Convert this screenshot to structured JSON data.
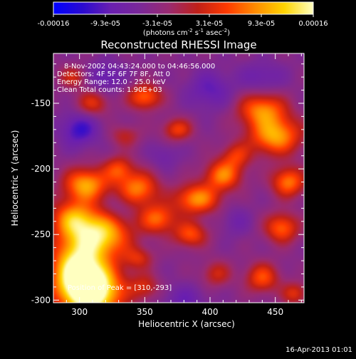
{
  "chart_data": {
    "type": "heatmap",
    "title": "Reconstructed RHESSI Image",
    "xlabel": "Heliocentric X (arcsec)",
    "ylabel": "Heliocentric Y (arcsec)",
    "xlim": [
      280,
      472
    ],
    "ylim": [
      -302,
      -112
    ],
    "xticks": [
      300,
      350,
      400,
      450
    ],
    "yticks": [
      -150,
      -200,
      -250,
      -300
    ],
    "colorbar": {
      "min": -0.00016,
      "max": 0.00016,
      "ticks": [
        "-0.00016",
        "-9.3e-05",
        "-3.1e-05",
        "3.1e-05",
        "9.3e-05",
        "0.00016"
      ],
      "unit_label": "(photons cm",
      "unit_sup1": "-2",
      "unit_mid": " s",
      "unit_sup2": "-1",
      "unit_end": " asec",
      "unit_sup3": "-2",
      "unit_close": ")"
    },
    "annotations": [
      "8-Nov-2002 04:43:24.000 to 04:46:56.000",
      "Detectors: 4F 5F 6F 7F 8F, Att 0",
      "Energy Range: 12.0 - 25.0 keV",
      "Clean     Total counts: 1.90E+03"
    ],
    "peak_label": "Position of Peak = [310,-293]",
    "peak": {
      "x": 310,
      "y": -293
    },
    "timestamp": "16-Apr-2013 01:01",
    "blobs": [
      {
        "x": 310,
        "y": -293,
        "amp": 1.0,
        "sx": 16,
        "sy": 14
      },
      {
        "x": 298,
        "y": -275,
        "amp": 0.8,
        "sx": 14,
        "sy": 18
      },
      {
        "x": 318,
        "y": -250,
        "amp": 0.7,
        "sx": 15,
        "sy": 12
      },
      {
        "x": 295,
        "y": -238,
        "amp": 0.55,
        "sx": 12,
        "sy": 10
      },
      {
        "x": 305,
        "y": -212,
        "amp": 0.65,
        "sx": 12,
        "sy": 9
      },
      {
        "x": 345,
        "y": -215,
        "amp": 0.55,
        "sx": 11,
        "sy": 9
      },
      {
        "x": 360,
        "y": -238,
        "amp": 0.5,
        "sx": 10,
        "sy": 8
      },
      {
        "x": 390,
        "y": -223,
        "amp": 0.6,
        "sx": 12,
        "sy": 8
      },
      {
        "x": 410,
        "y": -205,
        "amp": 0.55,
        "sx": 10,
        "sy": 8
      },
      {
        "x": 385,
        "y": -250,
        "amp": 0.45,
        "sx": 9,
        "sy": 7
      },
      {
        "x": 330,
        "y": -200,
        "amp": 0.4,
        "sx": 8,
        "sy": 7
      },
      {
        "x": 420,
        "y": -190,
        "amp": 0.35,
        "sx": 8,
        "sy": 7
      },
      {
        "x": 450,
        "y": -175,
        "amp": 0.65,
        "sx": 14,
        "sy": 10
      },
      {
        "x": 440,
        "y": -155,
        "amp": 0.55,
        "sx": 13,
        "sy": 9
      },
      {
        "x": 350,
        "y": -145,
        "amp": 0.5,
        "sx": 9,
        "sy": 7
      },
      {
        "x": 375,
        "y": -170,
        "amp": 0.4,
        "sx": 8,
        "sy": 6
      },
      {
        "x": 310,
        "y": -150,
        "amp": 0.35,
        "sx": 9,
        "sy": 7
      },
      {
        "x": 295,
        "y": -130,
        "amp": 0.3,
        "sx": 8,
        "sy": 6
      },
      {
        "x": 460,
        "y": -210,
        "amp": 0.55,
        "sx": 9,
        "sy": 8
      },
      {
        "x": 455,
        "y": -245,
        "amp": 0.5,
        "sx": 9,
        "sy": 8
      },
      {
        "x": 440,
        "y": -283,
        "amp": 0.45,
        "sx": 9,
        "sy": 8
      },
      {
        "x": 465,
        "y": -295,
        "amp": 0.35,
        "sx": 7,
        "sy": 6
      },
      {
        "x": 405,
        "y": -280,
        "amp": 0.3,
        "sx": 8,
        "sy": 7
      },
      {
        "x": 350,
        "y": -290,
        "amp": 0.3,
        "sx": 8,
        "sy": 7
      },
      {
        "x": 345,
        "y": -268,
        "amp": 0.3,
        "sx": 8,
        "sy": 6
      },
      {
        "x": 335,
        "y": -175,
        "amp": 0.25,
        "sx": 8,
        "sy": 6
      },
      {
        "x": 300,
        "y": -170,
        "amp": -0.35,
        "sx": 10,
        "sy": 9
      },
      {
        "x": 320,
        "y": -130,
        "amp": -0.25,
        "sx": 10,
        "sy": 8
      },
      {
        "x": 400,
        "y": -140,
        "amp": -0.25,
        "sx": 12,
        "sy": 10
      },
      {
        "x": 440,
        "y": -130,
        "amp": -0.2,
        "sx": 12,
        "sy": 8
      },
      {
        "x": 380,
        "y": -300,
        "amp": -0.2,
        "sx": 12,
        "sy": 8
      },
      {
        "x": 420,
        "y": -240,
        "amp": -0.15,
        "sx": 8,
        "sy": 8
      },
      {
        "x": 365,
        "y": -190,
        "amp": -0.15,
        "sx": 8,
        "sy": 7
      },
      {
        "x": 330,
        "y": -230,
        "amp": -0.1,
        "sx": 8,
        "sy": 7
      }
    ],
    "background": 0.08,
    "palette": [
      "#0000ff",
      "#2a0ad0",
      "#6a1fb0",
      "#7a2898",
      "#9a2a70",
      "#c02018",
      "#ff3a00",
      "#ff8c00",
      "#ffd400",
      "#ffffc0"
    ]
  }
}
